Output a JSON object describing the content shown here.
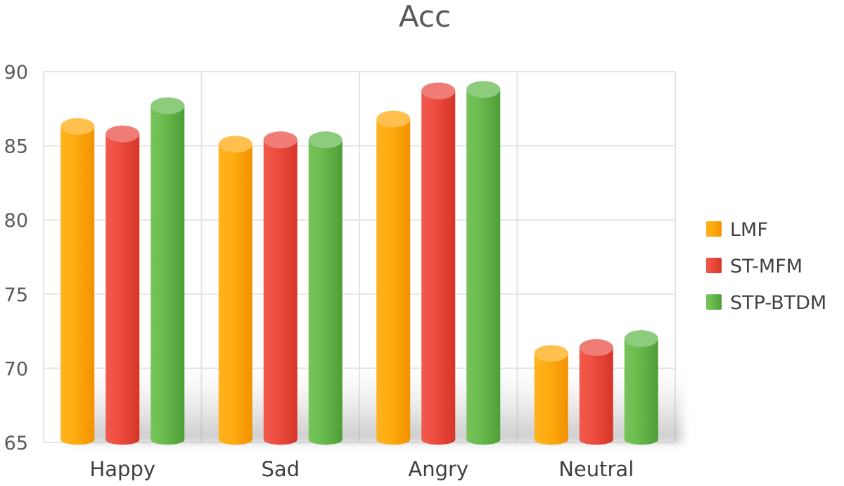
{
  "chart_data": {
    "type": "bar",
    "title": "Acc",
    "categories": [
      "Happy",
      "Sad",
      "Angry",
      "Neutral"
    ],
    "series": [
      {
        "name": "LMF",
        "values": [
          86.3,
          85.1,
          86.8,
          71.0
        ],
        "color": "#ffa500"
      },
      {
        "name": "ST-MFM",
        "values": [
          85.8,
          85.4,
          88.7,
          71.4
        ],
        "color": "#e8453c"
      },
      {
        "name": "STP-BTDM",
        "values": [
          87.7,
          85.4,
          88.8,
          72.0
        ],
        "color": "#5cb545"
      }
    ],
    "ylim": [
      65,
      90
    ],
    "yticks": [
      "65",
      "70",
      "75",
      "80",
      "85",
      "90"
    ],
    "grid": true,
    "legend_position": "right",
    "style": "3d-cylinder"
  }
}
